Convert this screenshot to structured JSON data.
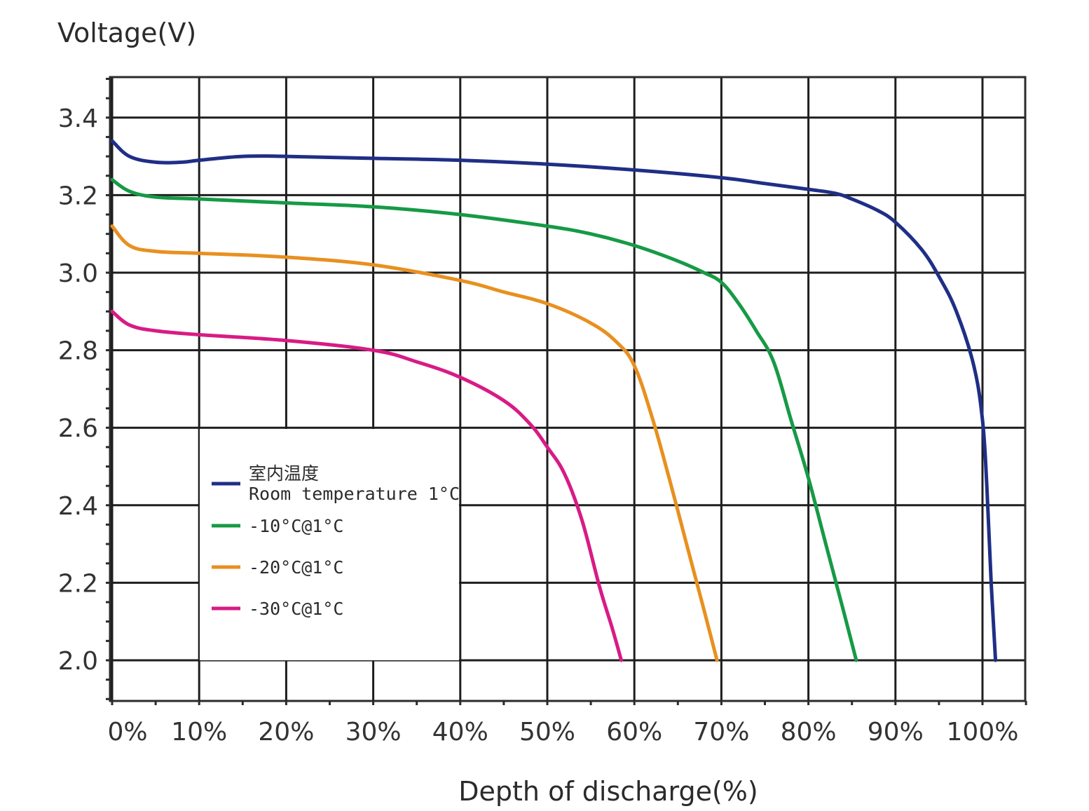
{
  "chart_data": {
    "type": "line",
    "title": "",
    "ylabel": "Voltage(V)",
    "xlabel": "Depth of discharge(%)",
    "xlim": [
      0,
      105
    ],
    "ylim": [
      1.9,
      3.51
    ],
    "grid": true,
    "x_ticks": [
      0,
      10,
      20,
      30,
      40,
      50,
      60,
      70,
      80,
      90,
      100
    ],
    "x_tick_labels": [
      "0%",
      "10%",
      "20%",
      "30%",
      "40%",
      "50%",
      "60%",
      "70%",
      "80%",
      "90%",
      "100%"
    ],
    "y_ticks": [
      2.0,
      2.2,
      2.4,
      2.6,
      2.8,
      3.0,
      3.2,
      3.4
    ],
    "y_tick_labels": [
      "2.0",
      "2.2",
      "2.4",
      "2.6",
      "2.8",
      "3.0",
      "3.2",
      "3.4"
    ],
    "legend_position": "bottom-left",
    "series": [
      {
        "name": "室内温度\nRoom temperature 1°C",
        "color": "#1f2f86",
        "x": [
          0,
          2,
          5,
          8,
          10,
          15,
          20,
          30,
          40,
          50,
          60,
          70,
          75,
          80,
          83,
          85,
          88,
          90,
          93,
          95,
          97,
          99,
          100,
          100.5,
          101,
          101.5
        ],
        "y": [
          3.34,
          3.3,
          3.285,
          3.285,
          3.29,
          3.3,
          3.3,
          3.295,
          3.29,
          3.28,
          3.265,
          3.245,
          3.23,
          3.215,
          3.205,
          3.19,
          3.16,
          3.13,
          3.06,
          2.99,
          2.9,
          2.76,
          2.62,
          2.45,
          2.2,
          2.0
        ]
      },
      {
        "name": "-10°C@1°C",
        "color": "#169a45",
        "x": [
          0,
          2,
          5,
          10,
          20,
          30,
          40,
          50,
          55,
          60,
          65,
          68,
          70,
          72,
          74,
          76,
          78,
          80,
          82,
          84,
          85.5
        ],
        "y": [
          3.24,
          3.21,
          3.195,
          3.19,
          3.18,
          3.17,
          3.15,
          3.12,
          3.1,
          3.07,
          3.03,
          3.0,
          2.975,
          2.92,
          2.85,
          2.77,
          2.62,
          2.47,
          2.3,
          2.13,
          2.0
        ]
      },
      {
        "name": "-20°C@1°C",
        "color": "#e8901f",
        "x": [
          0,
          2,
          5,
          10,
          20,
          30,
          40,
          45,
          50,
          55,
          58,
          60,
          62,
          64,
          66,
          68,
          69.5
        ],
        "y": [
          3.12,
          3.07,
          3.055,
          3.05,
          3.04,
          3.02,
          2.98,
          2.95,
          2.92,
          2.87,
          2.82,
          2.76,
          2.63,
          2.47,
          2.3,
          2.13,
          2.0
        ]
      },
      {
        "name": "-30°C@1°C",
        "color": "#d81b85",
        "x": [
          0,
          2,
          5,
          10,
          20,
          30,
          35,
          40,
          45,
          48,
          50,
          52,
          54,
          56,
          57.5,
          58.5
        ],
        "y": [
          2.9,
          2.865,
          2.85,
          2.84,
          2.825,
          2.8,
          2.77,
          2.73,
          2.67,
          2.61,
          2.55,
          2.48,
          2.36,
          2.19,
          2.08,
          2.0
        ]
      }
    ]
  }
}
